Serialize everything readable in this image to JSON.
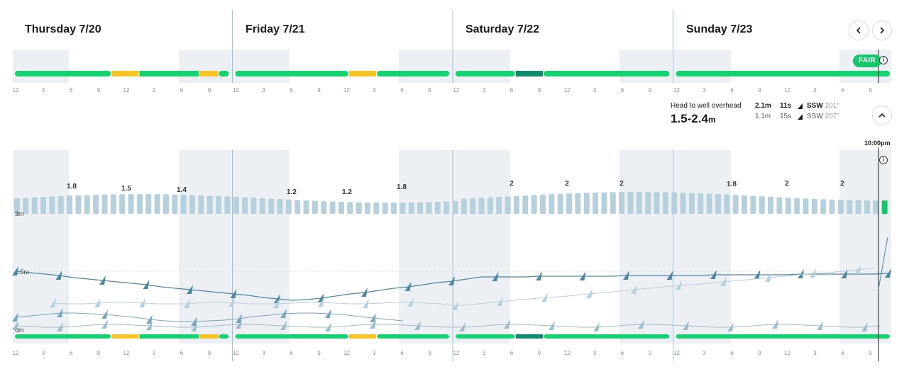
{
  "days": [
    {
      "label": "Thursday 7/20"
    },
    {
      "label": "Friday 7/21"
    },
    {
      "label": "Saturday 7/22"
    },
    {
      "label": "Sunday 7/23"
    }
  ],
  "nav": {
    "prev_icon": "chevron-left-icon",
    "next_icon": "chevron-right-icon"
  },
  "condition": {
    "label": "FAIR",
    "color": "#15c76b"
  },
  "hour_ticks": [
    "12",
    "3",
    "6",
    "9",
    "12",
    "3",
    "6",
    "9"
  ],
  "summary": {
    "description": "Head to well overhead",
    "range": "1.5-2.4",
    "unit": "m",
    "swells": [
      {
        "height": "2.1m",
        "period": "11s",
        "direction": "SSW",
        "degrees": "201°"
      },
      {
        "height": "1.1m",
        "period": "15s",
        "direction": "SSW",
        "degrees": "207°"
      }
    ]
  },
  "now": {
    "label": "10:00pm"
  },
  "colors": {
    "good": "#15d16f",
    "fair": "#f7c325",
    "epic": "#0e8a6d",
    "bar": "#b7d0dd",
    "bar_now": "#15c76b",
    "night": "#eceff3",
    "divider": "#9fc3d6"
  },
  "chart_data": {
    "type": "bar",
    "y_axis_labels": [
      "3m",
      "1.5m",
      "0m"
    ],
    "wave_labels": [
      "1.8",
      "1.5",
      "1.4",
      "1.2",
      "1.2",
      "1.8",
      "2",
      "2",
      "2",
      "1.8",
      "2",
      "2"
    ],
    "condition_segments": [
      {
        "day": 0,
        "segments": [
          [
            "good",
            0.45
          ],
          [
            "fair",
            0.58
          ],
          [
            "good",
            0.86
          ],
          [
            "fair",
            0.95
          ],
          [
            "good",
            1.0
          ]
        ]
      },
      {
        "day": 1,
        "segments": [
          [
            "good",
            0.53
          ],
          [
            "fair",
            0.66
          ],
          [
            "good",
            1.0
          ]
        ]
      },
      {
        "day": 2,
        "segments": [
          [
            "good",
            0.28
          ],
          [
            "epic",
            0.41
          ],
          [
            "good",
            1.0
          ]
        ]
      },
      {
        "day": 3,
        "segments": [
          [
            "good",
            1.0
          ]
        ]
      }
    ]
  }
}
